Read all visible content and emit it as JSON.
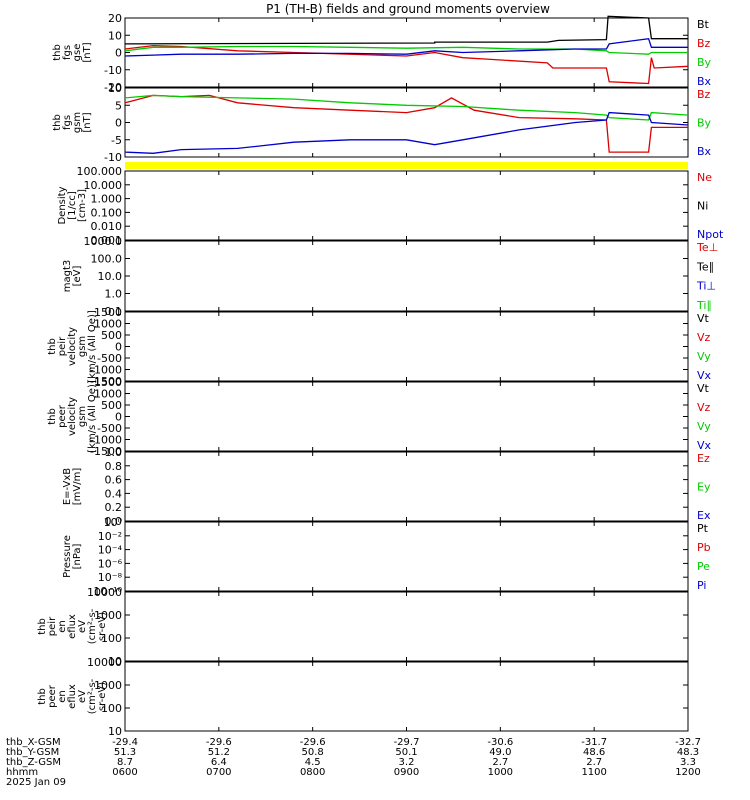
{
  "title": "P1 (TH-B) fields and ground moments overview",
  "colors": {
    "black": "#000000",
    "red": "#dd0000",
    "green": "#00cc00",
    "blue": "#0000cc",
    "yellow": "#ffff00"
  },
  "chart_data": [
    {
      "type": "line",
      "ylabel": [
        "thb",
        "fgs",
        "gse",
        "[nT]"
      ],
      "ylim": [
        -20,
        20
      ],
      "yticks": [
        "20",
        "10",
        "0",
        "-10",
        "-20"
      ],
      "legend": [
        {
          "label": "Bt",
          "color": "black"
        },
        {
          "label": "Bz",
          "color": "red"
        },
        {
          "label": "By",
          "color": "green"
        },
        {
          "label": "Bx",
          "color": "blue"
        }
      ],
      "series": [
        {
          "color": "black",
          "points": [
            [
              0,
              5
            ],
            [
              0.55,
              5.5
            ],
            [
              0.55,
              6
            ],
            [
              0.75,
              6
            ],
            [
              0.77,
              7
            ],
            [
              0.855,
              7.5
            ],
            [
              0.858,
              21
            ],
            [
              0.93,
              20
            ],
            [
              0.935,
              8
            ],
            [
              1,
              8
            ]
          ]
        },
        {
          "color": "red",
          "points": [
            [
              0,
              2
            ],
            [
              0.05,
              4
            ],
            [
              0.1,
              3.5
            ],
            [
              0.2,
              1
            ],
            [
              0.3,
              0
            ],
            [
              0.4,
              -1
            ],
            [
              0.5,
              -2
            ],
            [
              0.55,
              0
            ],
            [
              0.6,
              -3
            ],
            [
              0.65,
              -4
            ],
            [
              0.75,
              -6
            ],
            [
              0.76,
              -9
            ],
            [
              0.855,
              -9
            ],
            [
              0.86,
              -17
            ],
            [
              0.93,
              -18
            ],
            [
              0.935,
              -3
            ],
            [
              0.94,
              -9
            ],
            [
              1,
              -8
            ]
          ]
        },
        {
          "color": "green",
          "points": [
            [
              0,
              1
            ],
            [
              0.05,
              3
            ],
            [
              0.1,
              3
            ],
            [
              0.2,
              3.5
            ],
            [
              0.3,
              3.5
            ],
            [
              0.4,
              3
            ],
            [
              0.5,
              2.5
            ],
            [
              0.6,
              3
            ],
            [
              0.7,
              2
            ],
            [
              0.8,
              2
            ],
            [
              0.855,
              1
            ],
            [
              0.86,
              0
            ],
            [
              0.93,
              -1
            ],
            [
              0.935,
              0
            ],
            [
              1,
              0
            ]
          ]
        },
        {
          "color": "blue",
          "points": [
            [
              0,
              -2
            ],
            [
              0.05,
              -1.5
            ],
            [
              0.1,
              -1
            ],
            [
              0.2,
              -1
            ],
            [
              0.3,
              -0.5
            ],
            [
              0.4,
              -0.5
            ],
            [
              0.5,
              -1
            ],
            [
              0.55,
              1
            ],
            [
              0.6,
              0
            ],
            [
              0.7,
              1
            ],
            [
              0.8,
              2
            ],
            [
              0.855,
              2
            ],
            [
              0.86,
              5
            ],
            [
              0.93,
              8
            ],
            [
              0.935,
              3
            ],
            [
              1,
              3
            ]
          ]
        }
      ]
    },
    {
      "type": "line",
      "ylabel": [
        "thb",
        "fgs",
        "gsm",
        "[nT]"
      ],
      "ylim": [
        -14,
        14
      ],
      "yticks": [
        "10",
        "5",
        "0",
        "-5",
        "-10"
      ],
      "yticks_values": [
        10,
        5,
        0,
        -5,
        -10
      ],
      "legend": [
        {
          "label": "Bz",
          "color": "red"
        },
        {
          "label": "By",
          "color": "green"
        },
        {
          "label": "Bx",
          "color": "blue"
        }
      ],
      "series": [
        {
          "color": "red",
          "points": [
            [
              0,
              8
            ],
            [
              0.05,
              11
            ],
            [
              0.1,
              10.5
            ],
            [
              0.15,
              11
            ],
            [
              0.2,
              8
            ],
            [
              0.3,
              6
            ],
            [
              0.4,
              5
            ],
            [
              0.5,
              4
            ],
            [
              0.55,
              6
            ],
            [
              0.58,
              10
            ],
            [
              0.62,
              5
            ],
            [
              0.7,
              2
            ],
            [
              0.8,
              1.5
            ],
            [
              0.855,
              1
            ],
            [
              0.86,
              -12
            ],
            [
              0.93,
              -12
            ],
            [
              0.935,
              -2
            ],
            [
              1,
              -2
            ]
          ]
        },
        {
          "color": "green",
          "points": [
            [
              0,
              10
            ],
            [
              0.05,
              11
            ],
            [
              0.1,
              10.5
            ],
            [
              0.2,
              10
            ],
            [
              0.3,
              9.5
            ],
            [
              0.4,
              8
            ],
            [
              0.5,
              7
            ],
            [
              0.6,
              6.5
            ],
            [
              0.7,
              5
            ],
            [
              0.8,
              4
            ],
            [
              0.855,
              3
            ],
            [
              0.86,
              2
            ],
            [
              0.93,
              1
            ],
            [
              0.935,
              4
            ],
            [
              1,
              3
            ]
          ]
        },
        {
          "color": "blue",
          "points": [
            [
              0,
              -12
            ],
            [
              0.05,
              -12.5
            ],
            [
              0.1,
              -11
            ],
            [
              0.2,
              -10.5
            ],
            [
              0.3,
              -8
            ],
            [
              0.4,
              -7
            ],
            [
              0.5,
              -7
            ],
            [
              0.55,
              -9
            ],
            [
              0.6,
              -7
            ],
            [
              0.7,
              -3
            ],
            [
              0.8,
              0
            ],
            [
              0.855,
              1
            ],
            [
              0.86,
              4
            ],
            [
              0.93,
              3
            ],
            [
              0.935,
              0
            ],
            [
              1,
              -1
            ]
          ]
        }
      ]
    },
    {
      "type": "line",
      "ylabel": [
        "Density",
        "[1/cc]",
        "[cm-3]"
      ],
      "ylim": [
        0.001,
        100
      ],
      "yscale": "log",
      "yticks": [
        "100.000",
        "10.000",
        "1.000",
        "0.100",
        "0.010",
        "0.001"
      ],
      "legend": [
        {
          "label": "Ne",
          "color": "red"
        },
        {
          "label": "Ni",
          "color": "black"
        },
        {
          "label": "Npot",
          "color": "blue"
        }
      ],
      "series": []
    },
    {
      "type": "line",
      "ylabel": [
        "magt3",
        "[eV]"
      ],
      "ylim": [
        0.1,
        10000
      ],
      "yscale": "log",
      "yticks": [
        "1000.0",
        "100.0",
        "10.0",
        "1.0",
        "0.1"
      ],
      "legend": [
        {
          "label": "Te⊥",
          "color": "red"
        },
        {
          "label": "Te∥",
          "color": "black"
        },
        {
          "label": "Ti⊥",
          "color": "blue"
        },
        {
          "label": "Ti∥",
          "color": "green"
        }
      ],
      "series": []
    },
    {
      "type": "line",
      "ylabel": [
        "thb",
        "peir",
        "velocity",
        "gsm",
        "[km/s (All Qe)]"
      ],
      "ylim": [
        -1500,
        1500
      ],
      "yticks": [
        "1500",
        "1000",
        "500",
        "0",
        "-500",
        "-1000",
        "-1500"
      ],
      "legend": [
        {
          "label": "Vt",
          "color": "black"
        },
        {
          "label": "Vz",
          "color": "red"
        },
        {
          "label": "Vy",
          "color": "green"
        },
        {
          "label": "Vx",
          "color": "blue"
        }
      ],
      "series": []
    },
    {
      "type": "line",
      "ylabel": [
        "thb",
        "peer",
        "velocity",
        "gsm",
        "[km/s (All Qe)]"
      ],
      "ylim": [
        -1500,
        1500
      ],
      "yticks": [
        "1500",
        "1000",
        "500",
        "0",
        "-500",
        "-1000",
        "-1500"
      ],
      "legend": [
        {
          "label": "Vt",
          "color": "black"
        },
        {
          "label": "Vz",
          "color": "red"
        },
        {
          "label": "Vy",
          "color": "green"
        },
        {
          "label": "Vx",
          "color": "blue"
        }
      ],
      "series": []
    },
    {
      "type": "line",
      "ylabel": [
        "E=-VxB",
        "[mV/m]"
      ],
      "ylim": [
        0,
        1
      ],
      "yticks": [
        "1.0",
        "0.8",
        "0.6",
        "0.4",
        "0.2",
        "0.0"
      ],
      "legend": [
        {
          "label": "Ez",
          "color": "red"
        },
        {
          "label": "Ey",
          "color": "green"
        },
        {
          "label": "Ex",
          "color": "blue"
        }
      ],
      "series": []
    },
    {
      "type": "line",
      "ylabel": [
        "Pressure",
        "[nPa]"
      ],
      "ylim": [
        1e-10,
        1
      ],
      "yscale": "log",
      "yticks": [
        "10⁰",
        "10⁻²",
        "10⁻⁴",
        "10⁻⁶",
        "10⁻⁸",
        "10⁻¹⁰"
      ],
      "legend": [
        {
          "label": "Pt",
          "color": "black"
        },
        {
          "label": "Pb",
          "color": "red"
        },
        {
          "label": "Pe",
          "color": "green"
        },
        {
          "label": "Pi",
          "color": "blue"
        }
      ],
      "series": []
    },
    {
      "type": "line",
      "ylabel": [
        "thb",
        "peir",
        "en",
        "eflux",
        "eV",
        "(cm²-s-",
        "sr-eV)"
      ],
      "ylim": [
        10,
        10000
      ],
      "yscale": "log",
      "yticks": [
        "10000",
        "1000",
        "100",
        "10"
      ],
      "legend": [],
      "series": []
    },
    {
      "type": "line",
      "ylabel": [
        "thb",
        "peer",
        "en",
        "eflux",
        "eV",
        "(cm²-s-",
        "sr-eV)"
      ],
      "ylim": [
        10,
        10000
      ],
      "yscale": "log",
      "yticks": [
        "10000",
        "1000",
        "100",
        "10"
      ],
      "legend": [],
      "series": []
    }
  ],
  "xaxis": {
    "rows": [
      {
        "label": "thb_X-GSM",
        "values": [
          "-29.4",
          "-29.6",
          "-29.6",
          "-29.7",
          "-30.6",
          "-31.7",
          "-32.7"
        ]
      },
      {
        "label": "thb_Y-GSM",
        "values": [
          "51.3",
          "51.2",
          "50.8",
          "50.1",
          "49.0",
          "48.6",
          "48.3"
        ]
      },
      {
        "label": "thb_Z-GSM",
        "values": [
          "8.7",
          "6.4",
          "4.5",
          "3.2",
          "2.7",
          "2.7",
          "3.3"
        ]
      },
      {
        "label": "hhmm",
        "values": [
          "0600",
          "0700",
          "0800",
          "0900",
          "1000",
          "1100",
          "1200"
        ]
      }
    ],
    "date": "2025 Jan 09"
  }
}
